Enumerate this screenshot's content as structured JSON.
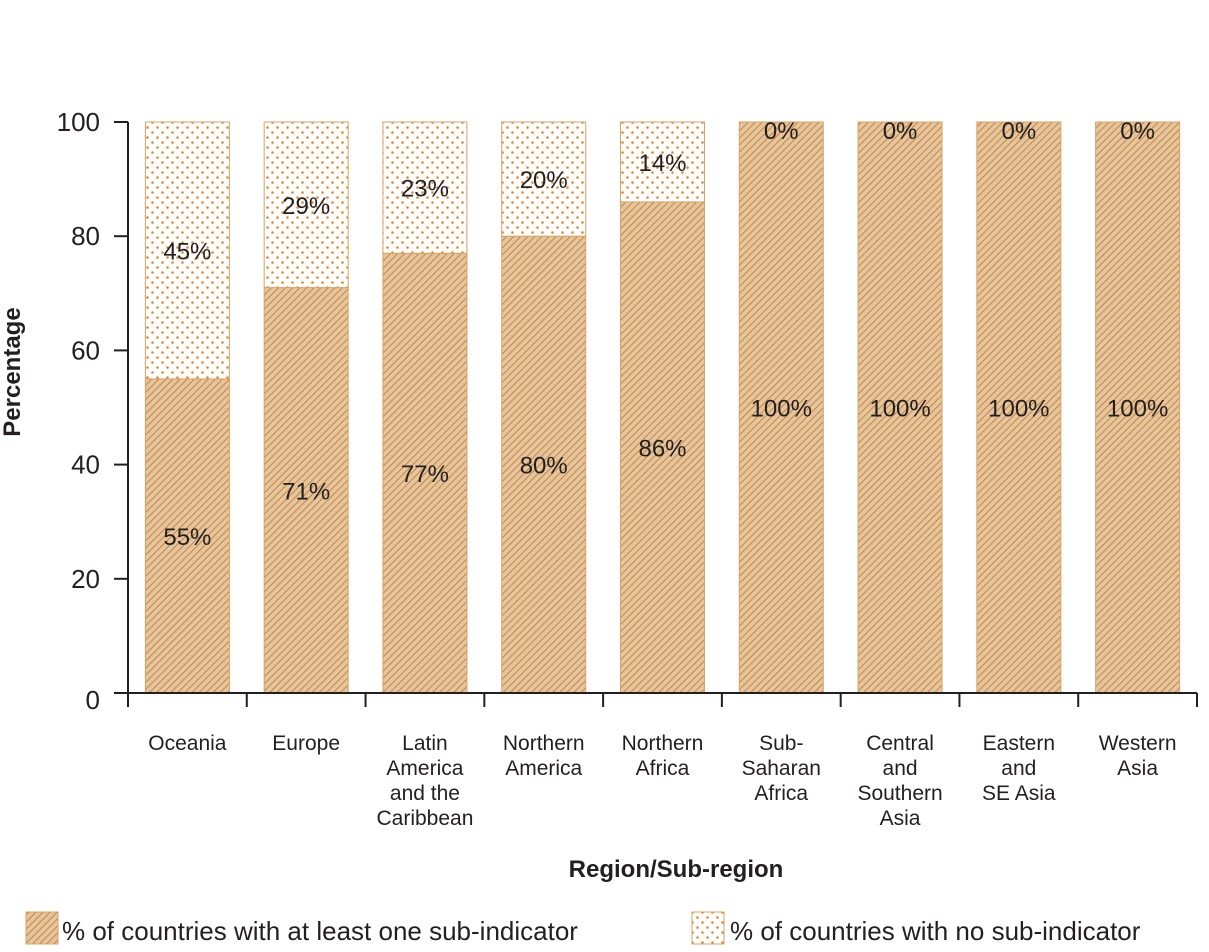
{
  "chart_data": {
    "type": "bar",
    "stacked": true,
    "categories": [
      [
        "Oceania"
      ],
      [
        "Europe"
      ],
      [
        "Latin",
        "America",
        "and the",
        "Caribbean"
      ],
      [
        "Northern",
        "America"
      ],
      [
        "Northern",
        "Africa"
      ],
      [
        "Sub-",
        "Saharan",
        "Africa"
      ],
      [
        "Central",
        "and",
        "Southern",
        "Asia"
      ],
      [
        "Eastern",
        "and",
        "SE Asia"
      ],
      [
        "Western",
        "Asia"
      ]
    ],
    "series": [
      {
        "name": "% of countries with at least one sub-indicator",
        "values": [
          55,
          71,
          77,
          80,
          86,
          100,
          100,
          100,
          100
        ],
        "labels": [
          "55%",
          "71%",
          "77%",
          "80%",
          "86%",
          "100%",
          "100%",
          "100%",
          "100%"
        ],
        "pattern": "hatch"
      },
      {
        "name": "% of countries with no sub-indicator",
        "values": [
          45,
          29,
          23,
          20,
          14,
          0,
          0,
          0,
          0
        ],
        "labels": [
          "45%",
          "29%",
          "23%",
          "20%",
          "14%",
          "0%",
          "0%",
          "0%",
          "0%"
        ],
        "pattern": "dots"
      }
    ],
    "xlabel": "Region/Sub-region",
    "ylabel": "Percentage",
    "ylim": [
      0,
      100
    ],
    "yticks": [
      "0",
      "20",
      "40",
      "60",
      "80",
      "100"
    ],
    "grid": false,
    "legend_position": "bottom",
    "colors": {
      "bar_fill": "#e7c49a",
      "hatch_line": "#b07a3c",
      "bar_border": "#d9a265",
      "dot": "#e08a2c",
      "axis": "#231f20"
    }
  }
}
